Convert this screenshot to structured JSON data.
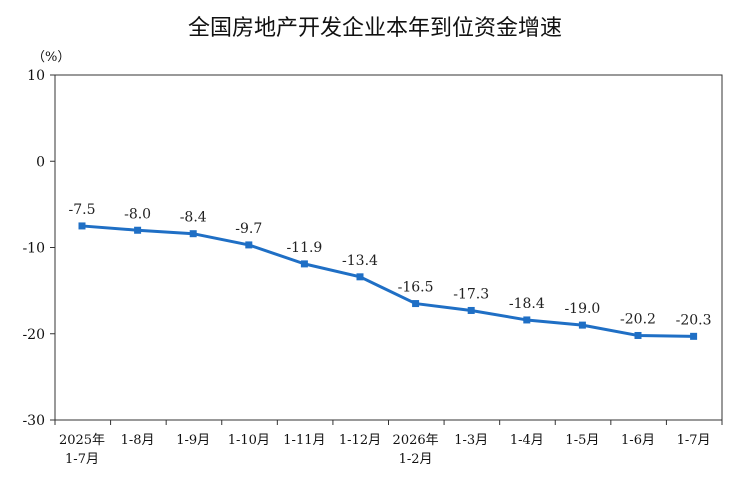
{
  "chart_data": {
    "type": "line",
    "title": "全国房地产开发企业本年到位资金增速",
    "unit": "（%）",
    "ylim": [
      -30,
      10
    ],
    "yticks": [
      10,
      0,
      -10,
      -20,
      -30
    ],
    "categories": [
      [
        "2025年",
        "1-7月"
      ],
      [
        "1-8月"
      ],
      [
        "1-9月"
      ],
      [
        "1-10月"
      ],
      [
        "1-11月"
      ],
      [
        "1-12月"
      ],
      [
        "2026年",
        "1-2月"
      ],
      [
        "1-3月"
      ],
      [
        "1-4月"
      ],
      [
        "1-5月"
      ],
      [
        "1-6月"
      ],
      [
        "1-7月"
      ]
    ],
    "series": [
      {
        "values": [
          -7.5,
          -8.0,
          -8.4,
          -9.7,
          -11.9,
          -13.4,
          -16.5,
          -17.3,
          -18.4,
          -19.0,
          -20.2,
          -20.3
        ],
        "color": "#1f6fc5"
      }
    ],
    "data_labels": [
      "-7.5",
      "-8.0",
      "-8.4",
      "-9.7",
      "-11.9",
      "-13.4",
      "-16.5",
      "-17.3",
      "-18.4",
      "-19.0",
      "-20.2",
      "-20.3"
    ],
    "grid": false
  }
}
